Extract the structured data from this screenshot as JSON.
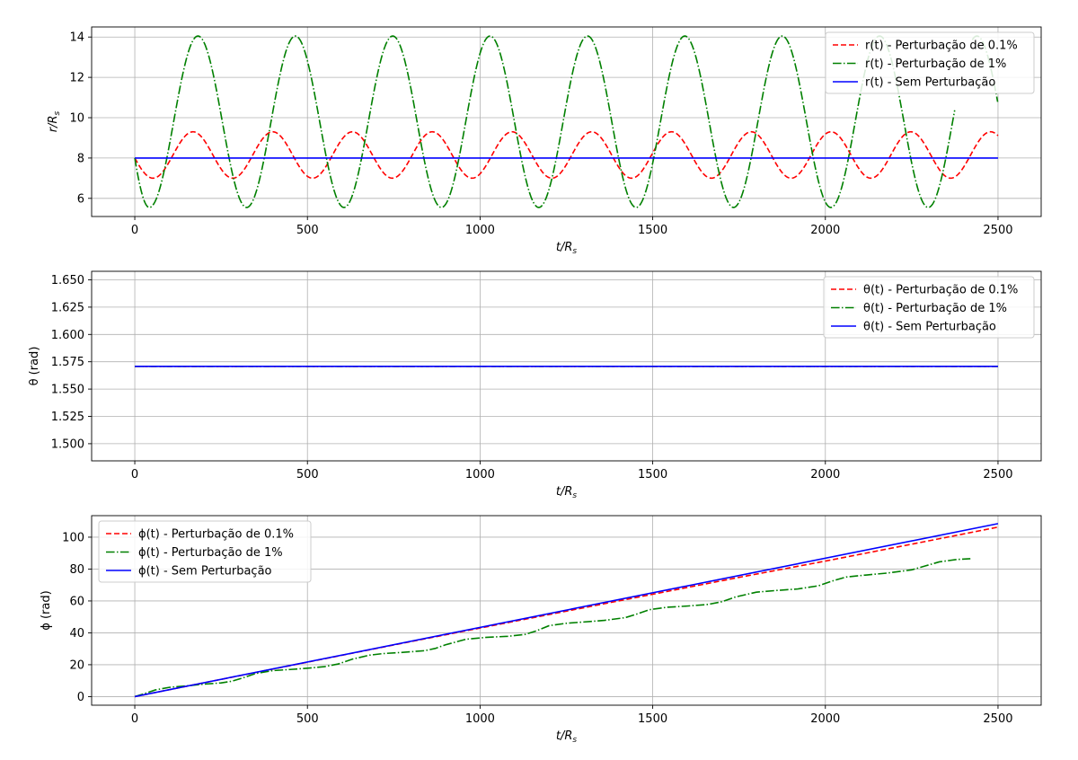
{
  "colors": {
    "series_red": "#ff0000",
    "series_green": "#008000",
    "series_blue": "#0000ff",
    "grid": "#b0b0b0",
    "axes": "#000000"
  },
  "chart_data": [
    {
      "type": "line",
      "title": "",
      "xlabel": "t/R_s",
      "xlabel_main": "t/R",
      "xlabel_sub": "s",
      "ylabel": "r/R_s",
      "ylabel_main": "r/R",
      "ylabel_sub": "s",
      "xlim": [
        -125,
        2625
      ],
      "ylim": [
        5.1,
        14.5
      ],
      "xticks": [
        0,
        500,
        1000,
        1500,
        2000,
        2500
      ],
      "xtick_labels": [
        "0",
        "500",
        "1000",
        "1500",
        "2000",
        "2500"
      ],
      "yticks": [
        6,
        8,
        10,
        12,
        14
      ],
      "ytick_labels": [
        "6",
        "8",
        "10",
        "12",
        "14"
      ],
      "grid": true,
      "legend": "top-right",
      "series": [
        {
          "name": "r(t) - Perturbação de 0.1%",
          "color": "#ff0000",
          "style": "dashed",
          "x_end": 2500,
          "model": {
            "kind": "cos",
            "center": 8.15,
            "amplitude": 1.15,
            "period": 231,
            "value_at_start": 8.0,
            "min": 7.0,
            "max": 9.3
          }
        },
        {
          "name": "r(t) - Perturbação de 1%",
          "color": "#008000",
          "style": "dashdot",
          "x_end": 2500,
          "model": {
            "kind": "radial",
            "min": 5.55,
            "max": 14.05,
            "period": 282,
            "value_at_start": 8.0,
            "first_min_at": 42,
            "clip_x_from": 2375,
            "clip_x_to": 2425
          }
        },
        {
          "name": "r(t) - Sem Perturbação",
          "color": "#0000ff",
          "style": "solid",
          "x": [
            0,
            2500
          ],
          "y": [
            8,
            8
          ]
        }
      ]
    },
    {
      "type": "line",
      "title": "",
      "xlabel": "t/R_s",
      "xlabel_main": "t/R",
      "xlabel_sub": "s",
      "ylabel": "θ (rad)",
      "xlim": [
        -125,
        2625
      ],
      "ylim": [
        1.4843,
        1.6578
      ],
      "xticks": [
        0,
        500,
        1000,
        1500,
        2000,
        2500
      ],
      "xtick_labels": [
        "0",
        "500",
        "1000",
        "1500",
        "2000",
        "2500"
      ],
      "yticks": [
        1.5,
        1.525,
        1.55,
        1.575,
        1.6,
        1.625,
        1.65
      ],
      "ytick_labels": [
        "1.500",
        "1.525",
        "1.550",
        "1.575",
        "1.600",
        "1.625",
        "1.650"
      ],
      "grid": true,
      "legend": "top-right",
      "series": [
        {
          "name": "θ(t) - Perturbação de 0.1%",
          "color": "#ff0000",
          "style": "dashed",
          "x": [
            0,
            2500
          ],
          "y": [
            1.5708,
            1.5708
          ]
        },
        {
          "name": "θ(t) - Perturbação de 1%",
          "color": "#008000",
          "style": "dashdot",
          "x": [
            0,
            2500
          ],
          "y": [
            1.5708,
            1.5708
          ]
        },
        {
          "name": "θ(t) - Sem Perturbação",
          "color": "#0000ff",
          "style": "solid",
          "x": [
            0,
            2500
          ],
          "y": [
            1.5708,
            1.5708
          ]
        }
      ]
    },
    {
      "type": "line",
      "title": "",
      "xlabel": "t/R_s",
      "xlabel_main": "t/R",
      "xlabel_sub": "s",
      "ylabel": "ϕ (rad)",
      "xlim": [
        -125,
        2625
      ],
      "ylim": [
        -5.4,
        113.5
      ],
      "xticks": [
        0,
        500,
        1000,
        1500,
        2000,
        2500
      ],
      "xtick_labels": [
        "0",
        "500",
        "1000",
        "1500",
        "2000",
        "2500"
      ],
      "yticks": [
        0,
        20,
        40,
        60,
        80,
        100
      ],
      "ytick_labels": [
        "0",
        "20",
        "40",
        "60",
        "80",
        "100"
      ],
      "grid": true,
      "legend": "top-left",
      "series": [
        {
          "name": "ϕ(t) - Perturbação de 0.1%",
          "color": "#ff0000",
          "style": "dashed",
          "x": [
            0,
            250,
            500,
            750,
            1000,
            1250,
            1500,
            1750,
            2000,
            2250,
            2500
          ],
          "y": [
            0,
            10.8,
            21.6,
            32.4,
            43.0,
            53.6,
            64.2,
            74.8,
            85.0,
            95.6,
            106.3
          ]
        },
        {
          "name": "ϕ(t) - Perturbação de 1%",
          "color": "#008000",
          "style": "dashdot",
          "x": [
            0,
            30,
            60,
            100,
            150,
            200,
            250,
            280,
            310,
            350,
            400,
            450,
            500,
            550,
            590,
            630,
            680,
            720,
            780,
            840,
            870,
            900,
            960,
            1020,
            1080,
            1130,
            1160,
            1200,
            1250,
            1300,
            1360,
            1420,
            1450,
            1490,
            1540,
            1600,
            1660,
            1700,
            1740,
            1800,
            1860,
            1920,
            1980,
            2020,
            2060,
            2120,
            2180,
            2250,
            2290,
            2330,
            2380,
            2420
          ],
          "y": [
            0,
            2.0,
            4.2,
            5.8,
            6.7,
            7.8,
            8.6,
            9.6,
            11.5,
            14.5,
            16.3,
            17.0,
            17.8,
            18.8,
            20.5,
            23.5,
            26.0,
            27.0,
            27.8,
            28.8,
            30.2,
            32.5,
            36.0,
            37.2,
            37.8,
            39.0,
            41.0,
            44.5,
            46.0,
            46.8,
            47.8,
            49.5,
            51.5,
            54.5,
            56.0,
            56.8,
            57.8,
            59.5,
            62.5,
            65.5,
            66.6,
            67.5,
            69.5,
            72.5,
            75.0,
            76.3,
            77.5,
            79.5,
            82.0,
            84.5,
            86.0,
            86.5
          ]
        },
        {
          "name": "ϕ(t) - Sem Perturbação",
          "color": "#0000ff",
          "style": "solid",
          "x": [
            0,
            2500
          ],
          "y": [
            0,
            108.5
          ]
        }
      ]
    }
  ]
}
